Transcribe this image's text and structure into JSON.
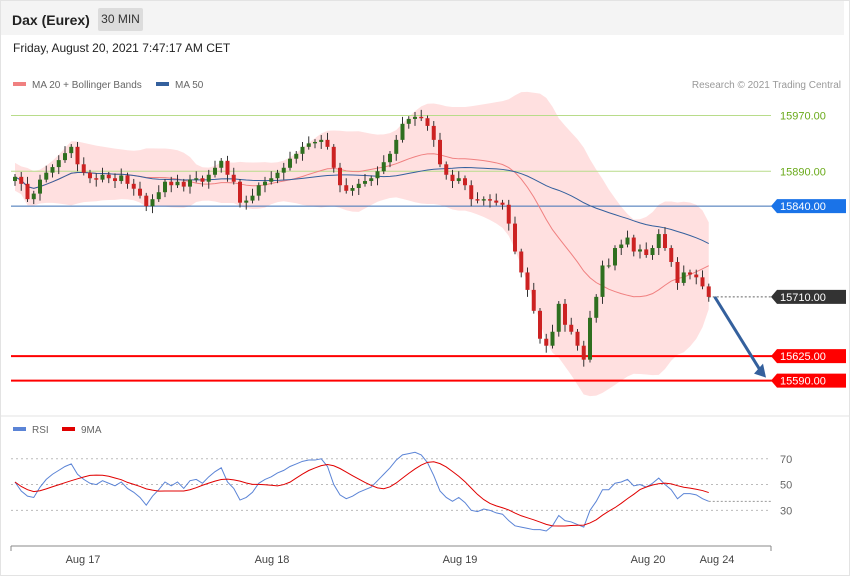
{
  "header": {
    "title": "Dax (Eurex)",
    "timeframe": "30 MIN"
  },
  "date_line": "Friday, August 20, 2021 7:47:17 AM CET",
  "legend_main": [
    {
      "label": "MA 20 + Bollinger Bands",
      "color": "#f08080"
    },
    {
      "label": "MA 50",
      "color": "#34609d"
    }
  ],
  "legend_rsi": [
    {
      "label": "RSI",
      "color": "#5b84d6"
    },
    {
      "label": "9MA",
      "color": "#e00000"
    }
  ],
  "credit": "Research © 2021 Trading Central",
  "chart_data": {
    "type": "candlestick",
    "instrument": "Dax (Eurex)",
    "interval": "30 MIN",
    "x_labels": [
      "Aug 17",
      "Aug 18",
      "Aug 19",
      "Aug 20",
      "Aug 24"
    ],
    "ylim": [
      15545,
      15995
    ],
    "levels": [
      {
        "value": 15970.0,
        "label": "15970.00",
        "kind": "resistance",
        "color": "#6aaa1a"
      },
      {
        "value": 15890.0,
        "label": "15890.00",
        "kind": "resistance",
        "color": "#6aaa1a"
      },
      {
        "value": 15840.0,
        "label": "15840.00",
        "kind": "pivot",
        "color": "#1a73e8"
      },
      {
        "value": 15710.0,
        "label": "15710.00",
        "kind": "last",
        "color": "#333333"
      },
      {
        "value": 15625.0,
        "label": "15625.00",
        "kind": "support",
        "color": "#ff0000"
      },
      {
        "value": 15590.0,
        "label": "15590.00",
        "kind": "support",
        "color": "#ff0000"
      }
    ],
    "arrow": {
      "from": 15710,
      "to": 15590,
      "direction": "down"
    },
    "closes": [
      15882,
      15872,
      15850,
      15858,
      15878,
      15888,
      15896,
      15906,
      15916,
      15925,
      15900,
      15888,
      15880,
      15878,
      15885,
      15880,
      15876,
      15884,
      15872,
      15865,
      15855,
      15840,
      15850,
      15860,
      15875,
      15870,
      15875,
      15868,
      15878,
      15880,
      15875,
      15885,
      15895,
      15905,
      15885,
      15875,
      15845,
      15848,
      15855,
      15870,
      15875,
      15880,
      15888,
      15895,
      15908,
      15915,
      15925,
      15930,
      15932,
      15935,
      15925,
      15895,
      15870,
      15862,
      15866,
      15872,
      15876,
      15880,
      15890,
      15903,
      15915,
      15935,
      15958,
      15965,
      15968,
      15966,
      15955,
      15935,
      15900,
      15885,
      15876,
      15880,
      15870,
      15850,
      15848,
      15850,
      15848,
      15845,
      15842,
      15815,
      15775,
      15745,
      15720,
      15690,
      15650,
      15640,
      15660,
      15700,
      15670,
      15660,
      15640,
      15620,
      15680,
      15710,
      15755,
      15755,
      15780,
      15785,
      15795,
      15775,
      15778,
      15770,
      15780,
      15800,
      15780,
      15760,
      15730,
      15745,
      15742,
      15738,
      15725,
      15710
    ],
    "rsi": [
      52,
      45,
      41,
      40,
      48,
      54,
      58,
      61,
      64,
      66,
      58,
      54,
      51,
      50,
      53,
      51,
      49,
      52,
      47,
      44,
      40,
      34,
      41,
      46,
      52,
      49,
      52,
      47,
      53,
      54,
      51,
      56,
      60,
      63,
      52,
      47,
      38,
      40,
      44,
      51,
      54,
      56,
      59,
      61,
      64,
      66,
      68,
      69,
      69,
      70,
      64,
      50,
      42,
      39,
      41,
      44,
      46,
      48,
      53,
      58,
      63,
      69,
      73,
      74,
      75,
      73,
      67,
      57,
      45,
      40,
      37,
      40,
      36,
      30,
      29,
      31,
      30,
      28,
      27,
      22,
      18,
      17,
      16,
      15,
      15,
      14,
      18,
      26,
      22,
      21,
      19,
      17,
      30,
      37,
      46,
      46,
      51,
      52,
      54,
      49,
      50,
      48,
      51,
      55,
      50,
      46,
      39,
      43,
      43,
      42,
      39,
      37
    ],
    "rsi_levels": [
      70,
      50,
      30
    ],
    "rsi_ylim": [
      7,
      83
    ]
  }
}
